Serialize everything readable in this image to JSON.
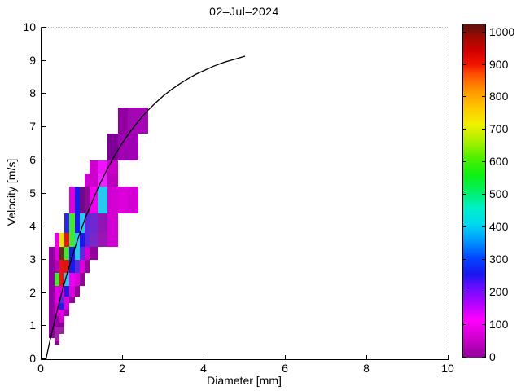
{
  "figure": {
    "background": "#ffffff",
    "axis_color": "#000000"
  },
  "chart_data": {
    "type": "heatmap",
    "title": "02–Jul–2024",
    "xlabel": "Diameter [mm]",
    "ylabel": "Velocity [m/s]",
    "xlim": [
      0,
      10
    ],
    "ylim": [
      0,
      10
    ],
    "x_ticks": [
      0,
      2,
      4,
      6,
      8,
      10
    ],
    "y_ticks": [
      0,
      1,
      2,
      3,
      4,
      5,
      6,
      7,
      8,
      9,
      10
    ],
    "grid": false,
    "legend_position": "none",
    "colorbar": {
      "min": 0,
      "max": 1024,
      "tick_values": [
        0,
        100,
        200,
        300,
        400,
        500,
        600,
        700,
        800,
        900,
        1000
      ],
      "stops": [
        [
          0.0,
          "#8F0099"
        ],
        [
          0.055,
          "#CC00CC"
        ],
        [
          0.115,
          "#FF00FF"
        ],
        [
          0.16,
          "#B303FF"
        ],
        [
          0.21,
          "#6A0DFF"
        ],
        [
          0.25,
          "#1A16F0"
        ],
        [
          0.3,
          "#0048FF"
        ],
        [
          0.35,
          "#0096FF"
        ],
        [
          0.4,
          "#00D8F0"
        ],
        [
          0.45,
          "#00F0C8"
        ],
        [
          0.5,
          "#00F060"
        ],
        [
          0.55,
          "#10F010"
        ],
        [
          0.6,
          "#50F000"
        ],
        [
          0.65,
          "#AAF000"
        ],
        [
          0.7,
          "#F0F000"
        ],
        [
          0.75,
          "#FFC800"
        ],
        [
          0.8,
          "#FF9600"
        ],
        [
          0.85,
          "#FF5000"
        ],
        [
          0.88,
          "#F01400"
        ],
        [
          0.92,
          "#D20000"
        ],
        [
          0.96,
          "#A00A00"
        ],
        [
          1.0,
          "#5A1410"
        ]
      ]
    },
    "cells_format": [
      "d_min_mm",
      "d_max_mm",
      "v_min_ms",
      "v_max_ms",
      "color",
      "count"
    ],
    "cells": [
      [
        0.3125,
        0.4375,
        0.45,
        0.55,
        "#94009E",
        30
      ],
      [
        0.3125,
        0.4375,
        0.55,
        0.65,
        "#A81EA8",
        45
      ],
      [
        0.1875,
        0.3125,
        0.65,
        0.75,
        "#8E00A0",
        30
      ],
      [
        0.3125,
        0.4375,
        0.65,
        0.75,
        "#9A28A0",
        40
      ],
      [
        0.1875,
        0.3125,
        0.75,
        0.85,
        "#8E00A0",
        30
      ],
      [
        0.3125,
        0.4375,
        0.75,
        0.85,
        "#A020A8",
        45
      ],
      [
        0.4375,
        0.5625,
        0.75,
        0.85,
        "#962896",
        40
      ],
      [
        0.1875,
        0.3125,
        0.85,
        0.95,
        "#8E00A0",
        30
      ],
      [
        0.3125,
        0.4375,
        0.85,
        0.95,
        "#A81EB4",
        50
      ],
      [
        0.4375,
        0.5625,
        0.85,
        0.95,
        "#9A28A0",
        40
      ],
      [
        0.1875,
        0.3125,
        0.95,
        1.1,
        "#8E00A0",
        30
      ],
      [
        0.3125,
        0.4375,
        0.95,
        1.1,
        "#9600A0",
        35
      ],
      [
        0.4375,
        0.5625,
        0.95,
        1.1,
        "#8E0096",
        30
      ],
      [
        0.1875,
        0.3125,
        1.1,
        1.3,
        "#8E00A0",
        30
      ],
      [
        0.3125,
        0.4375,
        1.1,
        1.3,
        "#9600A0",
        35
      ],
      [
        0.4375,
        0.5625,
        1.1,
        1.3,
        "#D200D2",
        80
      ],
      [
        0.1875,
        0.3125,
        1.3,
        1.5,
        "#8E00A0",
        30
      ],
      [
        0.3125,
        0.4375,
        1.3,
        1.5,
        "#DC00DC",
        90
      ],
      [
        0.4375,
        0.5625,
        1.3,
        1.5,
        "#E100E1",
        100
      ],
      [
        0.5625,
        0.6875,
        1.3,
        1.5,
        "#A000AA",
        40
      ],
      [
        0.1875,
        0.3125,
        1.5,
        1.7,
        "#8E00A0",
        30
      ],
      [
        0.3125,
        0.4375,
        1.5,
        1.7,
        "#D200D2",
        80
      ],
      [
        0.4375,
        0.5625,
        1.5,
        1.7,
        "#1E1EE6",
        270
      ],
      [
        0.5625,
        0.6875,
        1.5,
        1.7,
        "#DC00DC",
        90
      ],
      [
        0.1875,
        0.3125,
        1.7,
        1.9,
        "#8E00A0",
        30
      ],
      [
        0.3125,
        0.4375,
        1.7,
        1.9,
        "#E100E1",
        100
      ],
      [
        0.4375,
        0.5625,
        1.7,
        1.9,
        "#5A2BDC",
        210
      ],
      [
        0.5625,
        0.6875,
        1.7,
        1.9,
        "#E100E1",
        100
      ],
      [
        0.6875,
        0.8125,
        1.7,
        1.9,
        "#9600A0",
        35
      ],
      [
        0.1875,
        0.3125,
        1.9,
        2.2,
        "#8E00A0",
        30
      ],
      [
        0.3125,
        0.4375,
        1.9,
        2.2,
        "#E100E1",
        100
      ],
      [
        0.4375,
        0.5625,
        1.9,
        2.2,
        "#DC00DC",
        90
      ],
      [
        0.5625,
        0.6875,
        1.9,
        2.2,
        "#2814DC",
        250
      ],
      [
        0.6875,
        0.8125,
        1.9,
        2.2,
        "#DC00DC",
        90
      ],
      [
        0.8125,
        0.9375,
        1.9,
        2.2,
        "#96009B",
        35
      ],
      [
        0.1875,
        0.3125,
        2.2,
        2.6,
        "#8E00A0",
        30
      ],
      [
        0.3125,
        0.4375,
        2.2,
        2.6,
        "#46E632",
        570
      ],
      [
        0.4375,
        0.5625,
        2.2,
        2.6,
        "#E61414",
        890
      ],
      [
        0.5625,
        0.6875,
        2.2,
        2.6,
        "#28C8F0",
        400
      ],
      [
        0.6875,
        0.8125,
        2.2,
        2.6,
        "#F000F0",
        130
      ],
      [
        0.8125,
        0.9375,
        2.2,
        2.6,
        "#DC00DC",
        90
      ],
      [
        0.9375,
        1.0625,
        2.2,
        2.6,
        "#96009B",
        35
      ],
      [
        0.1875,
        0.3125,
        2.6,
        3.0,
        "#8E00A0",
        30
      ],
      [
        0.3125,
        0.4375,
        2.6,
        3.0,
        "#B400B4",
        60
      ],
      [
        0.4375,
        0.5625,
        2.6,
        3.0,
        "#E61414",
        890
      ],
      [
        0.5625,
        0.6875,
        2.6,
        3.0,
        "#DC1414",
        870
      ],
      [
        0.6875,
        0.8125,
        2.6,
        3.0,
        "#1A1AE6",
        265
      ],
      [
        0.8125,
        0.9375,
        2.6,
        3.0,
        "#5A2BDC",
        210
      ],
      [
        0.9375,
        1.0625,
        2.6,
        3.0,
        "#DC00DC",
        90
      ],
      [
        1.0625,
        1.1875,
        2.6,
        3.0,
        "#96009B",
        35
      ],
      [
        0.1875,
        0.3125,
        3.0,
        3.4,
        "#8E00A0",
        30
      ],
      [
        0.3125,
        0.4375,
        3.0,
        3.4,
        "#DC00DC",
        90
      ],
      [
        0.4375,
        0.5625,
        3.0,
        3.4,
        "#5A3214",
        1020
      ],
      [
        0.5625,
        0.6875,
        3.0,
        3.4,
        "#3FE832",
        580
      ],
      [
        0.6875,
        0.8125,
        3.0,
        3.4,
        "#1A1AE6",
        265
      ],
      [
        0.8125,
        0.9375,
        3.0,
        3.4,
        "#28C8F0",
        400
      ],
      [
        0.9375,
        1.0625,
        3.0,
        3.4,
        "#5A2BDC",
        210
      ],
      [
        1.0625,
        1.1875,
        3.0,
        3.4,
        "#D200D2",
        85
      ],
      [
        1.1875,
        1.375,
        3.0,
        3.4,
        "#96009B",
        35
      ],
      [
        0.3125,
        0.4375,
        3.4,
        3.8,
        "#E100E1",
        100
      ],
      [
        0.4375,
        0.5625,
        3.4,
        3.8,
        "#E8E800",
        700
      ],
      [
        0.5625,
        0.6875,
        3.4,
        3.8,
        "#E81010",
        890
      ],
      [
        0.6875,
        0.8125,
        3.4,
        3.8,
        "#3FE832",
        580
      ],
      [
        0.8125,
        0.9375,
        3.4,
        3.8,
        "#28C8F0",
        400
      ],
      [
        0.9375,
        1.0625,
        3.4,
        3.8,
        "#1A1AE8",
        265
      ],
      [
        1.0625,
        1.1875,
        3.4,
        3.8,
        "#5A28E0",
        215
      ],
      [
        1.1875,
        1.375,
        3.4,
        3.8,
        "#7828C8",
        180
      ],
      [
        1.375,
        1.625,
        3.4,
        3.8,
        "#9B14B4",
        55
      ],
      [
        1.625,
        1.875,
        3.4,
        3.8,
        "#D200D2",
        85
      ],
      [
        0.5625,
        0.6875,
        3.8,
        4.4,
        "#2828E6",
        260
      ],
      [
        0.6875,
        0.8125,
        3.8,
        4.4,
        "#46E632",
        570
      ],
      [
        0.8125,
        0.9375,
        3.8,
        4.4,
        "#1A1AE6",
        265
      ],
      [
        0.9375,
        1.0625,
        3.8,
        4.4,
        "#28C8F0",
        400
      ],
      [
        1.0625,
        1.1875,
        3.8,
        4.4,
        "#5A2BDC",
        210
      ],
      [
        1.1875,
        1.375,
        3.8,
        4.4,
        "#6E28D2",
        190
      ],
      [
        1.375,
        1.625,
        3.8,
        4.4,
        "#9114B4",
        55
      ],
      [
        1.625,
        1.875,
        3.8,
        4.4,
        "#D200D2",
        85
      ],
      [
        0.6875,
        0.8125,
        4.4,
        5.2,
        "#DC00DC",
        90
      ],
      [
        0.8125,
        0.9375,
        4.4,
        5.2,
        "#1A1AE6",
        265
      ],
      [
        0.9375,
        1.0625,
        4.4,
        5.2,
        "#6E0A8C",
        25
      ],
      [
        1.0625,
        1.1875,
        4.4,
        5.2,
        "#8C0A96",
        30
      ],
      [
        1.1875,
        1.375,
        4.4,
        5.2,
        "#F000F0",
        130
      ],
      [
        1.375,
        1.625,
        4.4,
        5.2,
        "#28C8F0",
        400
      ],
      [
        1.625,
        1.875,
        4.4,
        5.2,
        "#D200D2",
        85
      ],
      [
        1.875,
        2.125,
        4.4,
        5.2,
        "#DC00DC",
        90
      ],
      [
        2.125,
        2.375,
        4.4,
        5.2,
        "#D200D2",
        85
      ],
      [
        1.0625,
        1.1875,
        5.2,
        5.6,
        "#CD00CD",
        75
      ],
      [
        1.1875,
        1.375,
        5.2,
        5.6,
        "#CD00CD",
        75
      ],
      [
        1.375,
        1.625,
        5.2,
        5.6,
        "#EE22FF",
        130
      ],
      [
        1.625,
        1.875,
        5.2,
        5.6,
        "#BE00BE",
        65
      ],
      [
        1.1875,
        1.375,
        5.6,
        6.0,
        "#CD00CD",
        75
      ],
      [
        1.375,
        1.625,
        5.6,
        6.0,
        "#F012FF",
        135
      ],
      [
        1.625,
        1.875,
        5.6,
        6.0,
        "#C800C8",
        70
      ],
      [
        1.625,
        1.875,
        6.0,
        6.8,
        "#7D0096",
        15
      ],
      [
        1.875,
        2.125,
        6.0,
        6.8,
        "#A000B4",
        45
      ],
      [
        2.125,
        2.375,
        6.0,
        6.8,
        "#A000B4",
        45
      ],
      [
        1.875,
        2.125,
        6.8,
        7.6,
        "#91009F",
        32
      ],
      [
        2.125,
        2.375,
        6.8,
        7.6,
        "#A307B3",
        48
      ],
      [
        2.375,
        2.625,
        6.8,
        7.6,
        "#A307B3",
        48
      ]
    ],
    "curve": {
      "name": "terminal-velocity-curve",
      "color": "#000000",
      "points": [
        [
          0.11,
          0.0
        ],
        [
          0.2,
          0.52
        ],
        [
          0.3,
          1.04
        ],
        [
          0.4,
          1.55
        ],
        [
          0.5,
          2.02
        ],
        [
          0.6,
          2.46
        ],
        [
          0.7,
          2.88
        ],
        [
          0.8,
          3.28
        ],
        [
          0.9,
          3.65
        ],
        [
          1.0,
          4.0
        ],
        [
          1.1,
          4.33
        ],
        [
          1.2,
          4.62
        ],
        [
          1.4,
          5.2
        ],
        [
          1.6,
          5.7
        ],
        [
          1.8,
          6.15
        ],
        [
          2.0,
          6.55
        ],
        [
          2.2,
          6.9
        ],
        [
          2.4,
          7.21
        ],
        [
          2.6,
          7.49
        ],
        [
          2.8,
          7.73
        ],
        [
          3.0,
          7.95
        ],
        [
          3.2,
          8.14
        ],
        [
          3.4,
          8.31
        ],
        [
          3.6,
          8.46
        ],
        [
          3.8,
          8.6
        ],
        [
          4.0,
          8.71
        ],
        [
          4.25,
          8.85
        ],
        [
          4.5,
          8.96
        ],
        [
          4.75,
          9.05
        ],
        [
          5.0,
          9.14
        ]
      ]
    }
  }
}
